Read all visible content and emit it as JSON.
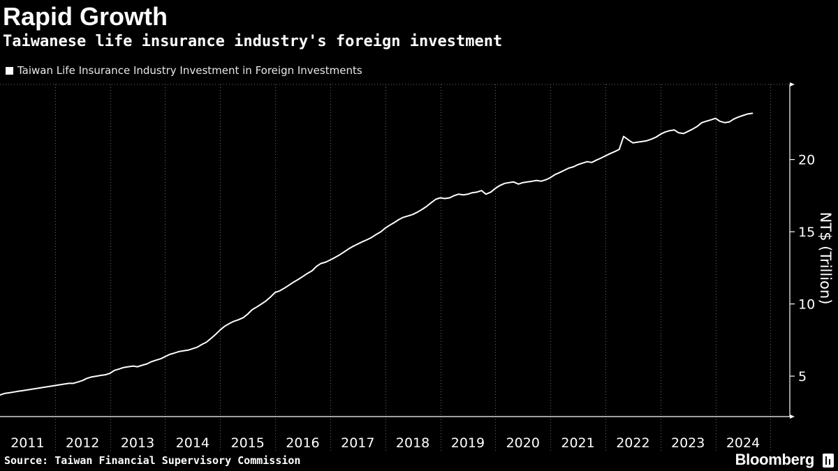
{
  "header": {
    "title": "Rapid Growth",
    "subtitle": "Taiwanese life insurance industry's foreign investment"
  },
  "footer": {
    "source": "Source: Taiwan Financial Supervisory Commission",
    "brand": "Bloomberg"
  },
  "colors": {
    "background": "#000000",
    "line": "#ffffff",
    "grid": "#555555",
    "text": "#ffffff"
  },
  "chart_data": {
    "type": "line",
    "title": "Rapid Growth",
    "subtitle": "Taiwanese life insurance industry's foreign investment",
    "ylabel": "NT$ (Trillion)",
    "xlabel": "",
    "ylim": [
      2.2,
      25.2
    ],
    "xlim": [
      2011.0,
      2025.35
    ],
    "y_ticks": [
      5,
      10,
      15,
      20
    ],
    "x_tick_labels": [
      "2011",
      "2012",
      "2013",
      "2014",
      "2015",
      "2016",
      "2017",
      "2018",
      "2019",
      "2020",
      "2021",
      "2022",
      "2023",
      "2024"
    ],
    "grid": "vertical dotted lines at year boundaries",
    "y_axis_position": "right",
    "legend_position": "top-left",
    "series": [
      {
        "name": "Taiwan Life Insurance Industry Investment in Foreign Investments",
        "points": [
          [
            2011.0,
            3.7
          ],
          [
            2011.08,
            3.8
          ],
          [
            2011.17,
            3.85
          ],
          [
            2011.25,
            3.9
          ],
          [
            2011.33,
            3.95
          ],
          [
            2011.42,
            4.0
          ],
          [
            2011.5,
            4.05
          ],
          [
            2011.58,
            4.1
          ],
          [
            2011.67,
            4.15
          ],
          [
            2011.75,
            4.2
          ],
          [
            2011.83,
            4.25
          ],
          [
            2011.92,
            4.3
          ],
          [
            2012.0,
            4.35
          ],
          [
            2012.08,
            4.4
          ],
          [
            2012.17,
            4.45
          ],
          [
            2012.25,
            4.5
          ],
          [
            2012.33,
            4.5
          ],
          [
            2012.42,
            4.6
          ],
          [
            2012.5,
            4.7
          ],
          [
            2012.58,
            4.85
          ],
          [
            2012.67,
            4.95
          ],
          [
            2012.75,
            5.0
          ],
          [
            2012.83,
            5.05
          ],
          [
            2012.92,
            5.1
          ],
          [
            2013.0,
            5.2
          ],
          [
            2013.08,
            5.4
          ],
          [
            2013.17,
            5.5
          ],
          [
            2013.25,
            5.6
          ],
          [
            2013.33,
            5.65
          ],
          [
            2013.42,
            5.7
          ],
          [
            2013.5,
            5.65
          ],
          [
            2013.58,
            5.75
          ],
          [
            2013.67,
            5.85
          ],
          [
            2013.75,
            6.0
          ],
          [
            2013.83,
            6.1
          ],
          [
            2013.92,
            6.2
          ],
          [
            2014.0,
            6.35
          ],
          [
            2014.08,
            6.5
          ],
          [
            2014.17,
            6.6
          ],
          [
            2014.25,
            6.7
          ],
          [
            2014.33,
            6.75
          ],
          [
            2014.42,
            6.8
          ],
          [
            2014.5,
            6.9
          ],
          [
            2014.58,
            7.0
          ],
          [
            2014.67,
            7.2
          ],
          [
            2014.75,
            7.35
          ],
          [
            2014.83,
            7.6
          ],
          [
            2014.92,
            7.9
          ],
          [
            2015.0,
            8.2
          ],
          [
            2015.08,
            8.45
          ],
          [
            2015.17,
            8.65
          ],
          [
            2015.25,
            8.8
          ],
          [
            2015.33,
            8.9
          ],
          [
            2015.42,
            9.05
          ],
          [
            2015.5,
            9.3
          ],
          [
            2015.58,
            9.6
          ],
          [
            2015.67,
            9.8
          ],
          [
            2015.75,
            10.0
          ],
          [
            2015.83,
            10.2
          ],
          [
            2015.92,
            10.5
          ],
          [
            2016.0,
            10.8
          ],
          [
            2016.08,
            10.9
          ],
          [
            2016.17,
            11.1
          ],
          [
            2016.25,
            11.3
          ],
          [
            2016.33,
            11.5
          ],
          [
            2016.42,
            11.7
          ],
          [
            2016.5,
            11.9
          ],
          [
            2016.58,
            12.1
          ],
          [
            2016.67,
            12.3
          ],
          [
            2016.75,
            12.6
          ],
          [
            2016.83,
            12.8
          ],
          [
            2016.92,
            12.9
          ],
          [
            2017.0,
            13.05
          ],
          [
            2017.08,
            13.2
          ],
          [
            2017.17,
            13.4
          ],
          [
            2017.25,
            13.6
          ],
          [
            2017.33,
            13.8
          ],
          [
            2017.42,
            14.0
          ],
          [
            2017.5,
            14.15
          ],
          [
            2017.58,
            14.3
          ],
          [
            2017.67,
            14.45
          ],
          [
            2017.75,
            14.6
          ],
          [
            2017.83,
            14.8
          ],
          [
            2017.92,
            15.0
          ],
          [
            2018.0,
            15.25
          ],
          [
            2018.08,
            15.45
          ],
          [
            2018.17,
            15.65
          ],
          [
            2018.25,
            15.85
          ],
          [
            2018.33,
            16.0
          ],
          [
            2018.42,
            16.1
          ],
          [
            2018.5,
            16.2
          ],
          [
            2018.58,
            16.35
          ],
          [
            2018.67,
            16.55
          ],
          [
            2018.75,
            16.75
          ],
          [
            2018.83,
            17.0
          ],
          [
            2018.92,
            17.25
          ],
          [
            2019.0,
            17.35
          ],
          [
            2019.08,
            17.3
          ],
          [
            2019.17,
            17.35
          ],
          [
            2019.25,
            17.5
          ],
          [
            2019.33,
            17.6
          ],
          [
            2019.42,
            17.55
          ],
          [
            2019.5,
            17.6
          ],
          [
            2019.58,
            17.7
          ],
          [
            2019.67,
            17.75
          ],
          [
            2019.75,
            17.85
          ],
          [
            2019.83,
            17.6
          ],
          [
            2019.92,
            17.75
          ],
          [
            2020.0,
            18.0
          ],
          [
            2020.08,
            18.2
          ],
          [
            2020.17,
            18.35
          ],
          [
            2020.25,
            18.4
          ],
          [
            2020.33,
            18.45
          ],
          [
            2020.42,
            18.3
          ],
          [
            2020.5,
            18.4
          ],
          [
            2020.58,
            18.45
          ],
          [
            2020.67,
            18.5
          ],
          [
            2020.75,
            18.55
          ],
          [
            2020.83,
            18.5
          ],
          [
            2020.92,
            18.6
          ],
          [
            2021.0,
            18.75
          ],
          [
            2021.08,
            18.95
          ],
          [
            2021.17,
            19.1
          ],
          [
            2021.25,
            19.25
          ],
          [
            2021.33,
            19.4
          ],
          [
            2021.42,
            19.5
          ],
          [
            2021.5,
            19.65
          ],
          [
            2021.58,
            19.75
          ],
          [
            2021.67,
            19.85
          ],
          [
            2021.75,
            19.8
          ],
          [
            2021.83,
            19.95
          ],
          [
            2021.92,
            20.1
          ],
          [
            2022.0,
            20.25
          ],
          [
            2022.08,
            20.4
          ],
          [
            2022.17,
            20.55
          ],
          [
            2022.25,
            20.7
          ],
          [
            2022.33,
            21.6
          ],
          [
            2022.42,
            21.35
          ],
          [
            2022.5,
            21.15
          ],
          [
            2022.58,
            21.2
          ],
          [
            2022.67,
            21.25
          ],
          [
            2022.75,
            21.3
          ],
          [
            2022.83,
            21.4
          ],
          [
            2022.92,
            21.55
          ],
          [
            2023.0,
            21.75
          ],
          [
            2023.08,
            21.9
          ],
          [
            2023.17,
            22.0
          ],
          [
            2023.25,
            22.05
          ],
          [
            2023.33,
            21.85
          ],
          [
            2023.42,
            21.8
          ],
          [
            2023.5,
            21.95
          ],
          [
            2023.58,
            22.1
          ],
          [
            2023.67,
            22.3
          ],
          [
            2023.75,
            22.55
          ],
          [
            2023.83,
            22.65
          ],
          [
            2023.92,
            22.75
          ],
          [
            2024.0,
            22.85
          ],
          [
            2024.08,
            22.65
          ],
          [
            2024.17,
            22.55
          ],
          [
            2024.25,
            22.6
          ],
          [
            2024.33,
            22.8
          ],
          [
            2024.42,
            22.95
          ],
          [
            2024.5,
            23.05
          ],
          [
            2024.58,
            23.15
          ],
          [
            2024.67,
            23.2
          ]
        ]
      }
    ]
  }
}
